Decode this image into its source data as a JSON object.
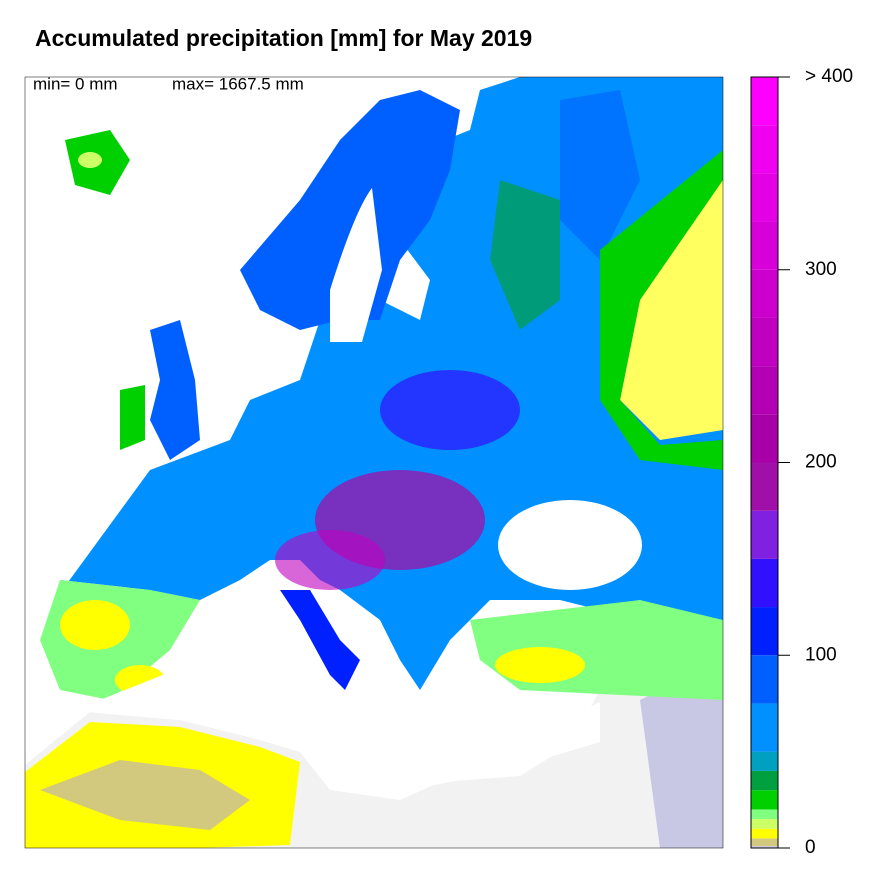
{
  "title": "Accumulated precipitation [mm] for May 2019",
  "stats": {
    "min": "min= 0 mm",
    "max": "max= 1667.5 mm"
  },
  "colorbar": {
    "range": [
      0,
      400
    ],
    "ticks": [
      0,
      100,
      200,
      300,
      {
        "value": 400,
        "label": "> 400"
      }
    ],
    "levels": [
      0,
      1,
      5,
      10,
      15,
      20,
      30,
      40,
      50,
      75,
      100,
      125,
      150,
      175,
      200,
      225,
      250,
      275,
      300,
      325,
      350,
      375,
      400
    ],
    "colors": [
      "#c8c8e4",
      "#d2c87e",
      "#ffff00",
      "#ccff66",
      "#80ff80",
      "#00d000",
      "#00a040",
      "#00a0c0",
      "#0090ff",
      "#0060ff",
      "#0020ff",
      "#3010ff",
      "#8020e0",
      "#a010a8",
      "#a800a8",
      "#b400b4",
      "#c000c0",
      "#cc00cc",
      "#d800d8",
      "#e400e4",
      "#f000f0",
      "#ff00ff"
    ]
  }
}
